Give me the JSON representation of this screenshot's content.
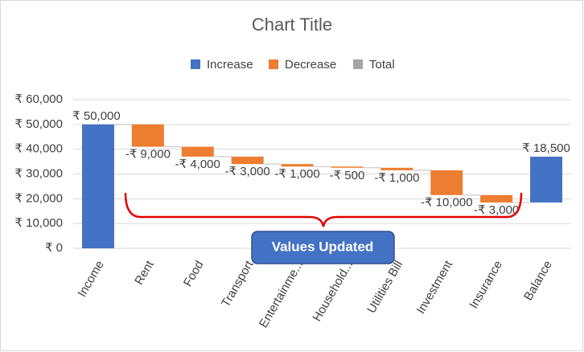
{
  "chart_data": {
    "type": "waterfall",
    "title": "Chart Title",
    "categories": [
      "Income",
      "Rent",
      "Food",
      "Transport",
      "Entertainme...",
      "Household...",
      "Utilities Bill",
      "Investment",
      "Insurance",
      "Balance"
    ],
    "values": [
      50000,
      -9000,
      -4000,
      -3000,
      -1000,
      -500,
      -1000,
      -10000,
      -3000,
      18500
    ],
    "value_labels": [
      "₹ 50,000",
      "-₹ 9,000",
      "-₹ 4,000",
      "-₹ 3,000",
      "-₹ 1,000",
      "-₹ 500",
      "-₹ 1,000",
      "-₹ 10,000",
      "-₹ 3,000",
      "₹ 18,500"
    ],
    "legend": [
      {
        "name": "Increase",
        "color": "#4472c4"
      },
      {
        "name": "Decrease",
        "color": "#ed7d31"
      },
      {
        "name": "Total",
        "color": "#a5a5a5"
      }
    ],
    "ylim": [
      0,
      60000
    ],
    "yticks": [
      {
        "value": 0,
        "label": "₹ 0"
      },
      {
        "value": 10000,
        "label": "₹ 10,000"
      },
      {
        "value": 20000,
        "label": "₹ 20,000"
      },
      {
        "value": 30000,
        "label": "₹ 30,000"
      },
      {
        "value": 40000,
        "label": "₹ 40,000"
      },
      {
        "value": 50000,
        "label": "₹ 50,000"
      },
      {
        "value": 60000,
        "label": "₹ 60,000"
      }
    ],
    "grid": true,
    "annotation": "Values Updated"
  }
}
